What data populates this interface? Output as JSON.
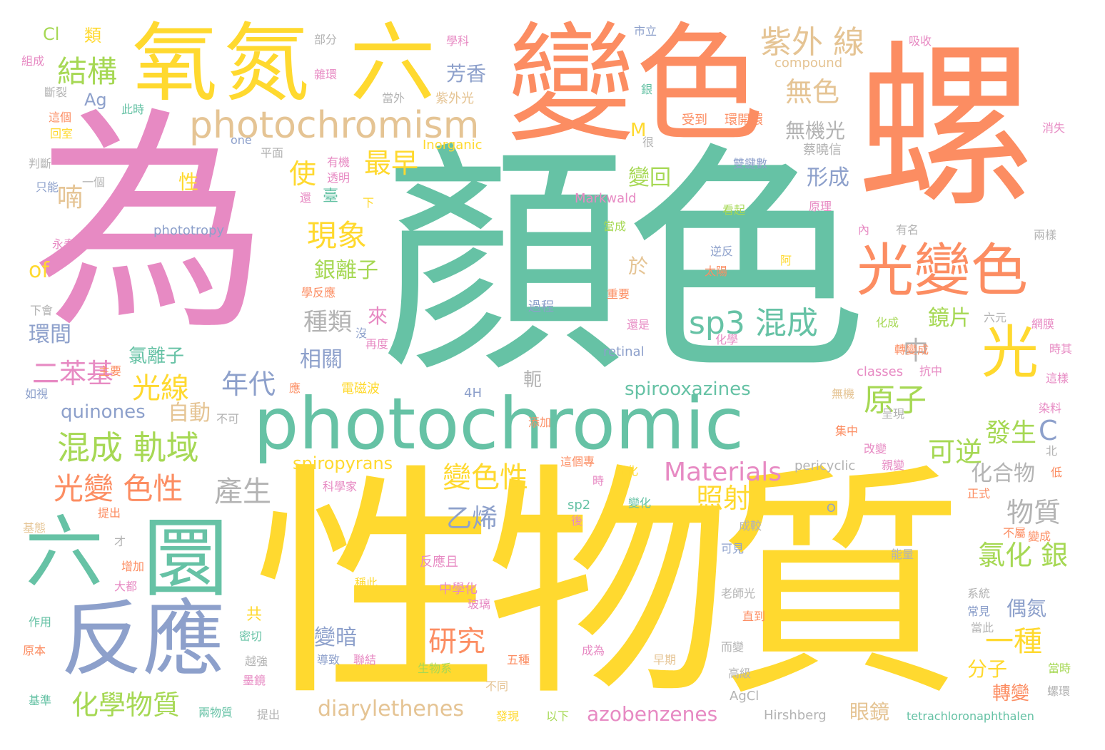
{
  "palette": {
    "teal": "#66c2a5",
    "orange": "#fc8d62",
    "blue": "#8da0cb",
    "pink": "#e78ac3",
    "green": "#a6d854",
    "yellow": "#ffd92f",
    "tan": "#e5c494",
    "gray": "#b3b3b3"
  },
  "words": [
    {
      "text": "為",
      "color": "pink"
    },
    {
      "text": "顏色",
      "color": "teal"
    },
    {
      "text": "性物質",
      "color": "yellow"
    },
    {
      "text": "螺",
      "color": "orange"
    },
    {
      "text": "變色",
      "color": "orange"
    },
    {
      "text": "氧氮",
      "color": "yellow"
    },
    {
      "text": "六",
      "color": "yellow"
    },
    {
      "text": "六",
      "color": "teal"
    },
    {
      "text": "圜",
      "color": "teal"
    },
    {
      "text": "反應",
      "color": "blue"
    },
    {
      "text": "photochromic",
      "color": "teal"
    },
    {
      "text": "光變色",
      "color": "orange"
    },
    {
      "text": "光",
      "color": "yellow"
    },
    {
      "text": "photochromism",
      "color": "tan"
    },
    {
      "text": "混成 軌域",
      "color": "green"
    },
    {
      "text": "紫外 線",
      "color": "tan"
    },
    {
      "text": "結構",
      "color": "green"
    },
    {
      "text": "sp3 混成",
      "color": "teal"
    },
    {
      "text": "原子",
      "color": "green"
    },
    {
      "text": "光變 色性",
      "color": "orange"
    },
    {
      "text": "現象",
      "color": "yellow"
    },
    {
      "text": "化學物質",
      "color": "green"
    },
    {
      "text": "Materials",
      "color": "pink"
    },
    {
      "text": "研究",
      "color": "orange"
    },
    {
      "text": "產生",
      "color": "gray"
    },
    {
      "text": "光線",
      "color": "yellow"
    },
    {
      "text": "二苯基",
      "color": "pink"
    },
    {
      "text": "變色性",
      "color": "yellow"
    },
    {
      "text": "氯化 銀",
      "color": "green"
    },
    {
      "text": "一種",
      "color": "yellow"
    },
    {
      "text": "無色",
      "color": "tan"
    },
    {
      "text": "最早",
      "color": "yellow"
    },
    {
      "text": "使",
      "color": "yellow"
    },
    {
      "text": "喃",
      "color": "tan"
    },
    {
      "text": "照射",
      "color": "yellow"
    },
    {
      "text": "可逆",
      "color": "green"
    },
    {
      "text": "物質",
      "color": "gray"
    },
    {
      "text": "發生",
      "color": "green"
    },
    {
      "text": "C",
      "color": "blue"
    },
    {
      "text": "中",
      "color": "gray"
    },
    {
      "text": "年代",
      "color": "blue"
    },
    {
      "text": "乙烯",
      "color": "blue"
    },
    {
      "text": "種類",
      "color": "gray"
    },
    {
      "text": "diarylethenes",
      "color": "tan"
    },
    {
      "text": "azobenzenes",
      "color": "pink"
    },
    {
      "text": "spirooxazines",
      "color": "teal"
    },
    {
      "text": "quinones",
      "color": "blue"
    },
    {
      "text": "spiropyrans",
      "color": "yellow"
    },
    {
      "text": "自動",
      "color": "tan"
    },
    {
      "text": "變暗",
      "color": "blue"
    },
    {
      "text": "銀離子",
      "color": "green"
    },
    {
      "text": "變回",
      "color": "green"
    },
    {
      "text": "形成",
      "color": "blue"
    },
    {
      "text": "鏡片",
      "color": "green"
    },
    {
      "text": "眼鏡",
      "color": "tan"
    },
    {
      "text": "分子",
      "color": "yellow"
    },
    {
      "text": "轉變",
      "color": "orange"
    },
    {
      "text": "偶氮",
      "color": "blue"
    },
    {
      "text": "化合物",
      "color": "gray"
    },
    {
      "text": "芳香",
      "color": "blue"
    },
    {
      "text": "無機光",
      "color": "gray"
    },
    {
      "text": "氯離子",
      "color": "teal"
    },
    {
      "text": "相關",
      "color": "blue"
    },
    {
      "text": "環間",
      "color": "blue"
    },
    {
      "text": "of",
      "color": "yellow"
    },
    {
      "text": "Ag",
      "color": "blue"
    },
    {
      "text": "Cl",
      "color": "green"
    },
    {
      "text": "類",
      "color": "yellow"
    },
    {
      "text": "來",
      "color": "pink"
    },
    {
      "text": "於",
      "color": "tan"
    },
    {
      "text": "性",
      "color": "yellow"
    },
    {
      "text": "M",
      "color": "yellow"
    },
    {
      "text": "共",
      "color": "yellow"
    },
    {
      "text": "軛",
      "color": "gray"
    },
    {
      "text": "部分",
      "color": "gray"
    },
    {
      "text": "學科",
      "color": "pink"
    },
    {
      "text": "市立",
      "color": "blue"
    },
    {
      "text": "吸收",
      "color": "pink"
    },
    {
      "text": "compound",
      "color": "tan"
    },
    {
      "text": "組成",
      "color": "pink"
    },
    {
      "text": "雜環",
      "color": "pink"
    },
    {
      "text": "斷裂",
      "color": "gray"
    },
    {
      "text": "紫外光",
      "color": "tan"
    },
    {
      "text": "當外",
      "color": "gray"
    },
    {
      "text": "銀",
      "color": "teal"
    },
    {
      "text": "此時",
      "color": "teal"
    },
    {
      "text": "這個",
      "color": "orange"
    },
    {
      "text": "回室",
      "color": "yellow"
    },
    {
      "text": "受到",
      "color": "orange"
    },
    {
      "text": "環開環",
      "color": "orange"
    },
    {
      "text": "消失",
      "color": "pink"
    },
    {
      "text": "Inorganic",
      "color": "yellow"
    },
    {
      "text": "one",
      "color": "blue"
    },
    {
      "text": "平面",
      "color": "gray"
    },
    {
      "text": "有機",
      "color": "pink"
    },
    {
      "text": "很",
      "color": "gray"
    },
    {
      "text": "蔡曉信",
      "color": "gray"
    },
    {
      "text": "判斷",
      "color": "gray"
    },
    {
      "text": "透明",
      "color": "pink"
    },
    {
      "text": "雙鍵數",
      "color": "blue"
    },
    {
      "text": "只能",
      "color": "blue"
    },
    {
      "text": "一個",
      "color": "gray"
    },
    {
      "text": "還",
      "color": "pink"
    },
    {
      "text": "臺",
      "color": "teal"
    },
    {
      "text": "下",
      "color": "yellow"
    },
    {
      "text": "看起",
      "color": "green"
    },
    {
      "text": "原理",
      "color": "pink"
    },
    {
      "text": "Markwald",
      "color": "pink"
    },
    {
      "text": "phototropy",
      "color": "blue"
    },
    {
      "text": "永春",
      "color": "pink"
    },
    {
      "text": "當成",
      "color": "green"
    },
    {
      "text": "內",
      "color": "pink"
    },
    {
      "text": "有名",
      "color": "gray"
    },
    {
      "text": "兩樣",
      "color": "gray"
    },
    {
      "text": "逆反",
      "color": "blue"
    },
    {
      "text": "阿",
      "color": "yellow"
    },
    {
      "text": "太陽",
      "color": "orange"
    },
    {
      "text": "學反應",
      "color": "orange"
    },
    {
      "text": "重要",
      "color": "orange"
    },
    {
      "text": "下會",
      "color": "gray"
    },
    {
      "text": "過程",
      "color": "blue"
    },
    {
      "text": "還是",
      "color": "pink"
    },
    {
      "text": "化學",
      "color": "pink"
    },
    {
      "text": "化成",
      "color": "green"
    },
    {
      "text": "六元",
      "color": "gray"
    },
    {
      "text": "網膜",
      "color": "pink"
    },
    {
      "text": "沒",
      "color": "blue"
    },
    {
      "text": "再度",
      "color": "pink"
    },
    {
      "text": "retinal",
      "color": "blue"
    },
    {
      "text": "轉變成",
      "color": "orange"
    },
    {
      "text": "時其",
      "color": "pink"
    },
    {
      "text": "如視",
      "color": "blue"
    },
    {
      "text": "主要",
      "color": "orange"
    },
    {
      "text": "應",
      "color": "orange"
    },
    {
      "text": "電磁波",
      "color": "yellow"
    },
    {
      "text": "4H",
      "color": "blue"
    },
    {
      "text": "classes",
      "color": "pink"
    },
    {
      "text": "抗中",
      "color": "pink"
    },
    {
      "text": "這樣",
      "color": "pink"
    },
    {
      "text": "不可",
      "color": "gray"
    },
    {
      "text": "添加",
      "color": "orange"
    },
    {
      "text": "無機",
      "color": "tan"
    },
    {
      "text": "呈現",
      "color": "gray"
    },
    {
      "text": "染料",
      "color": "pink"
    },
    {
      "text": "集中",
      "color": "orange"
    },
    {
      "text": "改變",
      "color": "pink"
    },
    {
      "text": "北",
      "color": "gray"
    },
    {
      "text": "這個專",
      "color": "orange"
    },
    {
      "text": "光化",
      "color": "yellow"
    },
    {
      "text": "pericyclic",
      "color": "gray"
    },
    {
      "text": "親變",
      "color": "pink"
    },
    {
      "text": "低",
      "color": "orange"
    },
    {
      "text": "時",
      "color": "pink"
    },
    {
      "text": "科學家",
      "color": "pink"
    },
    {
      "text": "正式",
      "color": "orange"
    },
    {
      "text": "提出",
      "color": "orange"
    },
    {
      "text": "sp2",
      "color": "teal"
    },
    {
      "text": "變化",
      "color": "teal"
    },
    {
      "text": "O",
      "color": "blue"
    },
    {
      "text": "後",
      "color": "pink"
    },
    {
      "text": "基態",
      "color": "tan"
    },
    {
      "text": "成較",
      "color": "gray"
    },
    {
      "text": "不屬",
      "color": "orange"
    },
    {
      "text": "變成",
      "color": "orange"
    },
    {
      "text": "才",
      "color": "gray"
    },
    {
      "text": "反應且",
      "color": "pink"
    },
    {
      "text": "可見",
      "color": "blue"
    },
    {
      "text": "能量",
      "color": "gray"
    },
    {
      "text": "增加",
      "color": "orange"
    },
    {
      "text": "稱此",
      "color": "yellow"
    },
    {
      "text": "大都",
      "color": "pink"
    },
    {
      "text": "中學化",
      "color": "pink"
    },
    {
      "text": "老師光",
      "color": "gray"
    },
    {
      "text": "系統",
      "color": "gray"
    },
    {
      "text": "玻璃",
      "color": "pink"
    },
    {
      "text": "常見",
      "color": "blue"
    },
    {
      "text": "作用",
      "color": "teal"
    },
    {
      "text": "密切",
      "color": "teal"
    },
    {
      "text": "直到",
      "color": "orange"
    },
    {
      "text": "當此",
      "color": "gray"
    },
    {
      "text": "而變",
      "color": "gray"
    },
    {
      "text": "原本",
      "color": "orange"
    },
    {
      "text": "越強",
      "color": "gray"
    },
    {
      "text": "導致",
      "color": "blue"
    },
    {
      "text": "聯結",
      "color": "pink"
    },
    {
      "text": "五種",
      "color": "orange"
    },
    {
      "text": "成為",
      "color": "pink"
    },
    {
      "text": "早期",
      "color": "tan"
    },
    {
      "text": "生物系",
      "color": "green"
    },
    {
      "text": "當時",
      "color": "green"
    },
    {
      "text": "墨鏡",
      "color": "pink"
    },
    {
      "text": "高級",
      "color": "gray"
    },
    {
      "text": "不同",
      "color": "tan"
    },
    {
      "text": "螺環",
      "color": "gray"
    },
    {
      "text": "基準",
      "color": "teal"
    },
    {
      "text": "AgCl",
      "color": "gray"
    },
    {
      "text": "兩物質",
      "color": "teal"
    },
    {
      "text": "提出",
      "color": "gray"
    },
    {
      "text": "發現",
      "color": "yellow"
    },
    {
      "text": "以下",
      "color": "green"
    },
    {
      "text": "Hirshberg",
      "color": "gray"
    },
    {
      "text": "tetrachloronaphthalen",
      "color": "teal"
    }
  ]
}
